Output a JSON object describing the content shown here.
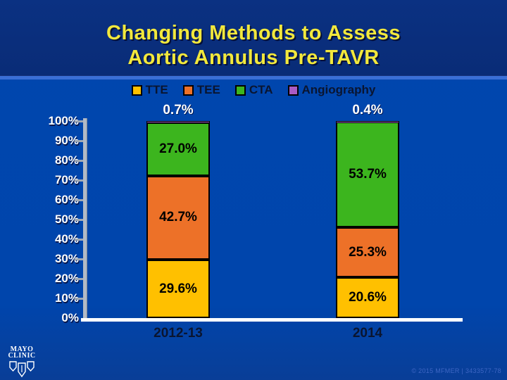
{
  "slide": {
    "title_line1": "Changing Methods to Assess",
    "title_line2": "Aortic Annulus Pre-TAVR",
    "footer_text": "© 2015 MFMER  |  3433577-78",
    "logo_line1": "MAYO",
    "logo_line2": "CLINIC",
    "colors": {
      "background": "#0046AE",
      "title_background": "#0B3182",
      "divider": "#3A6FD6",
      "title_text": "#F2E83C",
      "axis": "#B2BAC6",
      "baseline": "#FFFFFF",
      "label_dark": "#0A1530",
      "top_label": "#FFFFFF"
    }
  },
  "chart_data": {
    "type": "bar",
    "stacked": true,
    "title": "",
    "xlabel": "",
    "ylabel": "",
    "categories": [
      "2012-13",
      "2014"
    ],
    "series": [
      {
        "name": "TTE",
        "color": "#FFC000",
        "values": [
          29.6,
          20.6
        ]
      },
      {
        "name": "TEE",
        "color": "#ED7128",
        "values": [
          42.7,
          25.3
        ]
      },
      {
        "name": "CTA",
        "color": "#3CB51E",
        "values": [
          27.0,
          53.7
        ]
      },
      {
        "name": "Angiography",
        "color": "#A95BC4",
        "values": [
          0.7,
          0.4
        ]
      }
    ],
    "y_ticks": [
      "100%",
      "90%",
      "80%",
      "70%",
      "60%",
      "50%",
      "40%",
      "30%",
      "20%",
      "10%",
      "0%"
    ],
    "ylim": [
      0,
      100
    ],
    "grid": false,
    "legend_position": "top",
    "value_suffix": "%"
  }
}
